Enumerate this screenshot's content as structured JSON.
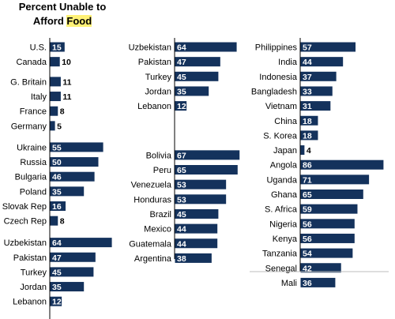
{
  "title": {
    "line1": "Percent Unable to",
    "line2_prefix": "Afford ",
    "line2_highlight": "Food"
  },
  "colors": {
    "bar": "#14325c",
    "value_inside": "#ffffff",
    "value_outside": "#000000",
    "highlight": "#fff176"
  },
  "chart_data": [
    {
      "type": "bar",
      "orientation": "horizontal",
      "categories": [
        "U.S.",
        "Canada",
        "G. Britain",
        "Italy",
        "France",
        "Germany",
        "Ukraine",
        "Russia",
        "Bulgaria",
        "Poland",
        "Slovak Rep",
        "Czech Rep",
        "Uzbekistan",
        "Pakistan",
        "Turkey",
        "Jordan",
        "Lebanon"
      ],
      "values": [
        15,
        10,
        11,
        11,
        8,
        5,
        55,
        50,
        46,
        35,
        16,
        8,
        64,
        47,
        45,
        35,
        12
      ]
    },
    {
      "type": "bar",
      "orientation": "horizontal",
      "categories": [
        "Uzbekistan",
        "Pakistan",
        "Turkey",
        "Jordan",
        "Lebanon",
        "Bolivia",
        "Peru",
        "Venezuela",
        "Honduras",
        "Brazil",
        "Mexico",
        "Guatemala",
        "Argentina"
      ],
      "values": [
        64,
        47,
        45,
        35,
        12,
        67,
        65,
        53,
        53,
        45,
        44,
        44,
        38
      ]
    },
    {
      "type": "bar",
      "orientation": "horizontal",
      "categories": [
        "Philippines",
        "India",
        "Indonesia",
        "Bangladesh",
        "Vietnam",
        "China",
        "S. Korea",
        "Japan",
        "Angola",
        "Uganda",
        "Ghana",
        "S. Africa",
        "Nigeria",
        "Kenya",
        "Tanzania",
        "Senegal",
        "Mali"
      ],
      "values": [
        57,
        44,
        37,
        33,
        31,
        18,
        18,
        4,
        86,
        71,
        65,
        59,
        56,
        56,
        54,
        42,
        36
      ]
    }
  ]
}
